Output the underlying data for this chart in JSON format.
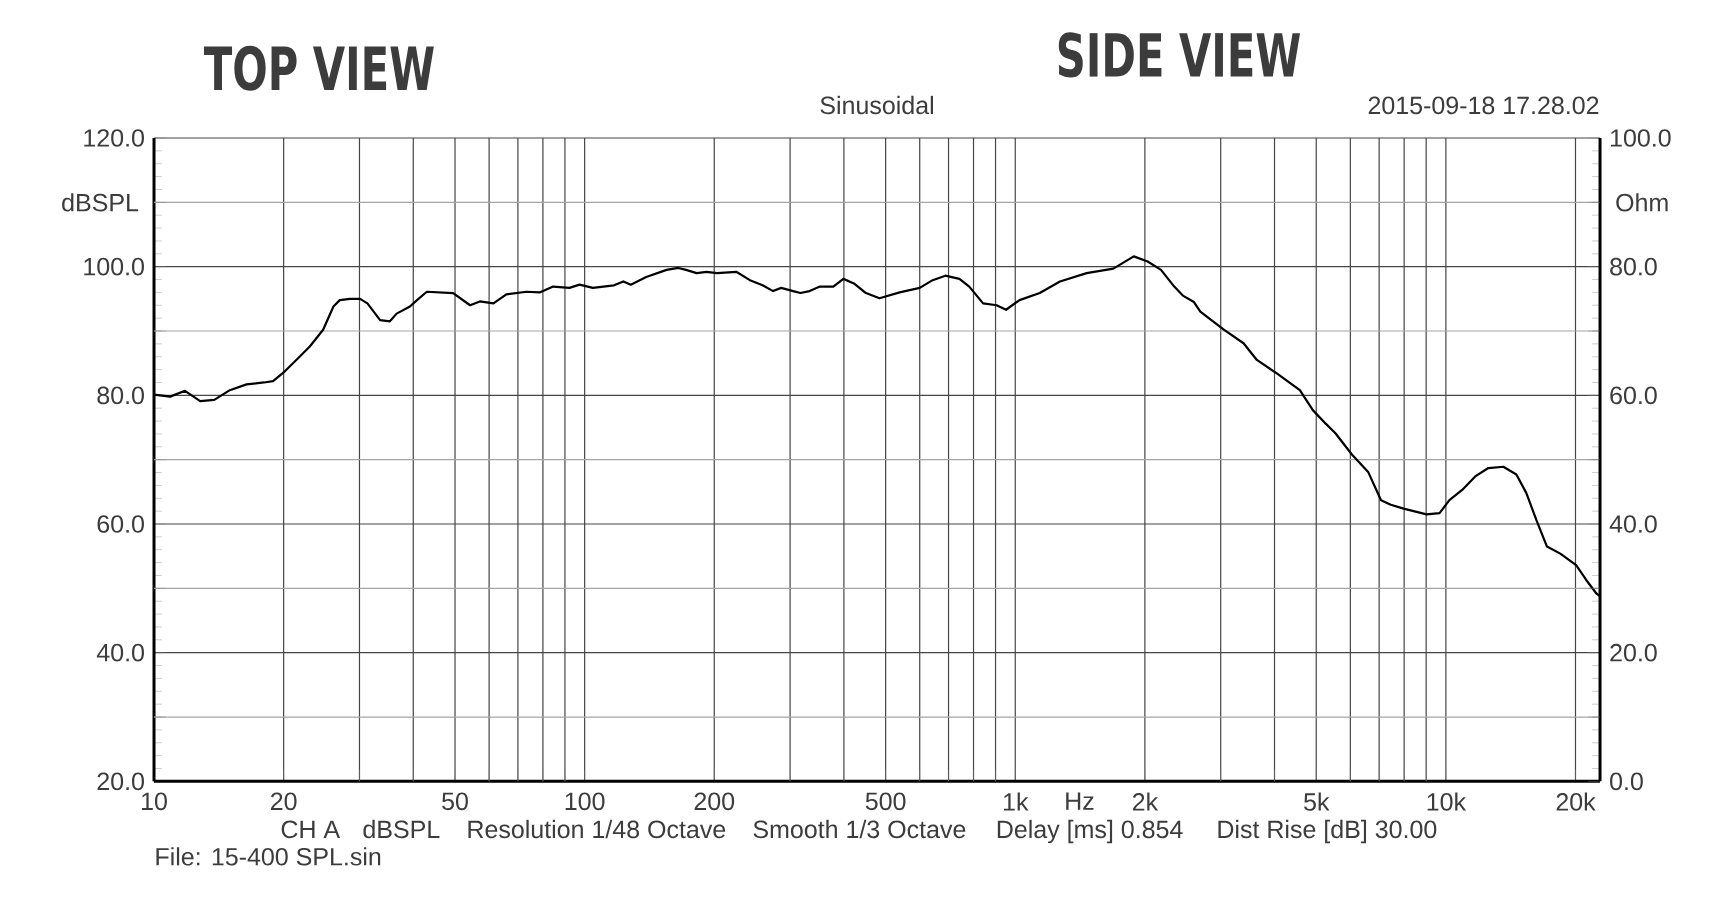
{
  "chart_data": {
    "type": "line",
    "title": "Sinusoidal",
    "xlabel": "Hz",
    "ylabel": "dBSPL",
    "y2label": "Ohm",
    "annotations": [
      "TOP VIEW",
      "SIDE VIEW",
      "2015-09-18 17.28.02",
      "CH A",
      "dBSPL",
      "Resolution 1/48 Octave",
      "Smooth 1/3 Octave",
      "Delay [ms] 0.854",
      "Dist Rise [dB] 30.00",
      "File: 15-400  SPL.sin"
    ],
    "x": [
      10,
      10.9,
      11.8,
      12.8,
      13.8,
      15,
      16.4,
      18,
      18.9,
      20.1,
      21.4,
      23,
      24.7,
      26.1,
      27,
      28.5,
      30.1,
      31.3,
      33.5,
      35.3,
      36.6,
      39.3,
      40.8,
      43,
      49.5,
      54.2,
      57.1,
      61.4,
      65.8,
      73.3,
      78.6,
      84.5,
      92.2,
      97.3,
      104.5,
      117,
      123,
      128,
      139,
      155,
      165,
      172,
      182,
      192,
      203,
      225,
      242,
      259,
      274,
      286,
      305,
      317,
      333,
      352,
      378,
      399,
      422,
      450,
      484,
      539,
      600,
      643,
      688,
      742,
      782,
      842,
      905,
      952,
      1023,
      1140,
      1270,
      1465,
      1690,
      1885,
      2030,
      2180,
      2340,
      2450,
      2600,
      2690,
      3050,
      3390,
      3640,
      4050,
      4580,
      4910,
      5260,
      5540,
      6050,
      6600,
      7070,
      7450,
      7980,
      9020,
      9670,
      10190,
      10910,
      11700,
      12550,
      13600,
      14580,
      15380,
      16230,
      17170,
      18440,
      20070,
      21180,
      22360,
      22800
    ],
    "series": [
      {
        "color": "#000000",
        "values": [
          80.1,
          79.8,
          80.7,
          79.1,
          79.3,
          80.8,
          81.7,
          82,
          82.2,
          83.7,
          85.5,
          87.6,
          90.2,
          93.8,
          94.8,
          95,
          95,
          94.3,
          91.7,
          91.5,
          92.7,
          93.8,
          94.8,
          96.1,
          95.9,
          94,
          94.6,
          94.3,
          95.7,
          96.1,
          96,
          96.9,
          96.7,
          97.2,
          96.7,
          97.1,
          97.7,
          97.2,
          98.4,
          99.5,
          99.8,
          99.5,
          99,
          99.2,
          99,
          99.2,
          97.9,
          97.1,
          96.2,
          96.7,
          96.2,
          95.9,
          96.2,
          96.9,
          96.9,
          98.1,
          97.4,
          95.9,
          95.1,
          96,
          96.7,
          97.9,
          98.6,
          98.1,
          96.9,
          94.3,
          94,
          93.3,
          94.8,
          95.9,
          97.7,
          99,
          99.7,
          101.6,
          100.8,
          99.5,
          96.9,
          95.5,
          94.5,
          93,
          90.2,
          88.1,
          85.5,
          83.4,
          80.8,
          77.7,
          75.6,
          74.1,
          70.8,
          68.1,
          63.7,
          63,
          62.4,
          61.5,
          61.7,
          63.7,
          65.3,
          67.4,
          68.7,
          68.9,
          67.7,
          64.8,
          60.6,
          56.5,
          55.4,
          53.6,
          51.3,
          49.2,
          48.8
        ]
      }
    ],
    "log": "x",
    "xlim": [
      10,
      22800
    ],
    "xticks": [
      10,
      20,
      {
        "value": 30,
        "label": null
      },
      {
        "value": 40,
        "label": null
      },
      50,
      {
        "value": 60,
        "label": null
      },
      {
        "value": 70,
        "label": null
      },
      {
        "value": 80,
        "label": null
      },
      {
        "value": 90,
        "label": null
      },
      100,
      200,
      {
        "value": 300,
        "label": null
      },
      {
        "value": 400,
        "label": null
      },
      500,
      {
        "value": 600,
        "label": null
      },
      {
        "value": 700,
        "label": null
      },
      {
        "value": 800,
        "label": null
      },
      {
        "value": 900,
        "label": null
      },
      {
        "value": 1000,
        "label": "1k"
      },
      {
        "value": 2000,
        "label": "2k"
      },
      {
        "value": 3000,
        "label": null
      },
      {
        "value": 4000,
        "label": null
      },
      {
        "value": 5000,
        "label": "5k"
      },
      {
        "value": 6000,
        "label": null
      },
      {
        "value": 7000,
        "label": null
      },
      {
        "value": 8000,
        "label": null
      },
      {
        "value": 9000,
        "label": null
      },
      {
        "value": 10000,
        "label": "10k"
      },
      {
        "value": 20000,
        "label": "20k"
      }
    ],
    "ylim": [
      20,
      120
    ],
    "yticks": [
      {
        "value": 20,
        "label": "20.0"
      },
      {
        "value": 30,
        "label": null
      },
      {
        "value": 40,
        "label": "40.0"
      },
      {
        "value": 50,
        "label": null
      },
      {
        "value": 60,
        "label": "60.0"
      },
      {
        "value": 70,
        "label": null
      },
      {
        "value": 80,
        "label": "80.0"
      },
      {
        "value": 90,
        "label": null
      },
      {
        "value": 100,
        "label": "100.0"
      },
      {
        "value": 110,
        "label": null
      },
      {
        "value": 120,
        "label": "120.0"
      }
    ],
    "y2lim": [
      0,
      100
    ],
    "y2ticks": [
      {
        "value": 0,
        "label": "0.0"
      },
      {
        "value": 10,
        "label": null
      },
      {
        "value": 20,
        "label": "20.0"
      },
      {
        "value": 30,
        "label": null
      },
      {
        "value": 40,
        "label": "40.0"
      },
      {
        "value": 50,
        "label": null
      },
      {
        "value": 60,
        "label": "60.0"
      },
      {
        "value": 70,
        "label": null
      },
      {
        "value": 80,
        "label": "80.0"
      },
      {
        "value": 90,
        "label": null
      },
      {
        "value": 100,
        "label": "100.0"
      }
    ],
    "grid": true
  }
}
